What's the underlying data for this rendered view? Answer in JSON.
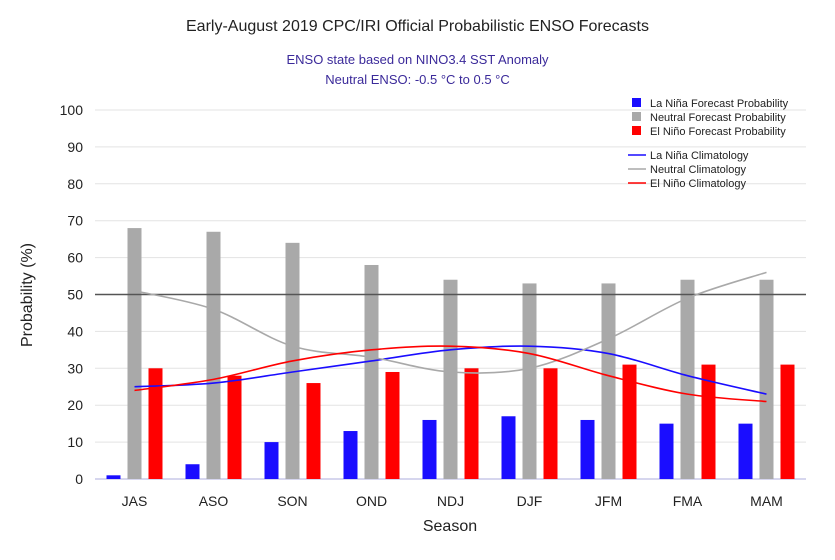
{
  "chart_data": {
    "type": "bar",
    "title": "Early-August 2019 CPC/IRI Official Probabilistic ENSO Forecasts",
    "subtitle": [
      "ENSO state based on NINO3.4 SST Anomaly",
      "Neutral ENSO: -0.5 °C to 0.5 °C"
    ],
    "xlabel": "Season",
    "ylabel": "Probability (%)",
    "ylim": [
      0,
      100
    ],
    "yticks": [
      0,
      10,
      20,
      30,
      40,
      50,
      60,
      70,
      80,
      90,
      100
    ],
    "categories": [
      "JAS",
      "ASO",
      "SON",
      "OND",
      "NDJ",
      "DJF",
      "JFM",
      "FMA",
      "MAM"
    ],
    "series": [
      {
        "name": "La Niña Forecast Probability",
        "kind": "bar",
        "color": "#1a0dff",
        "values": [
          1,
          4,
          10,
          13,
          16,
          17,
          16,
          15,
          15
        ]
      },
      {
        "name": "Neutral Forecast Probability",
        "kind": "bar",
        "color": "#a9a9a9",
        "values": [
          68,
          67,
          64,
          58,
          54,
          53,
          53,
          54,
          54
        ]
      },
      {
        "name": "El Niño Forecast Probability",
        "kind": "bar",
        "color": "#ff0000",
        "values": [
          30,
          28,
          26,
          29,
          30,
          30,
          31,
          31,
          31
        ]
      },
      {
        "name": "La Niña Climatology",
        "kind": "line",
        "color": "#1a0dff",
        "values": [
          25,
          26,
          29,
          32,
          35,
          36,
          34,
          28,
          23
        ]
      },
      {
        "name": "Neutral Climatology",
        "kind": "line",
        "color": "#a9a9a9",
        "values": [
          51,
          46,
          36,
          33,
          29,
          30,
          38,
          49,
          56
        ]
      },
      {
        "name": "El Niño Climatology",
        "kind": "line",
        "color": "#ff0000",
        "values": [
          24,
          27,
          32,
          35,
          36,
          34,
          28,
          23,
          21
        ]
      }
    ],
    "reference_line": 50,
    "grid": true,
    "legend_position": "top-right"
  }
}
